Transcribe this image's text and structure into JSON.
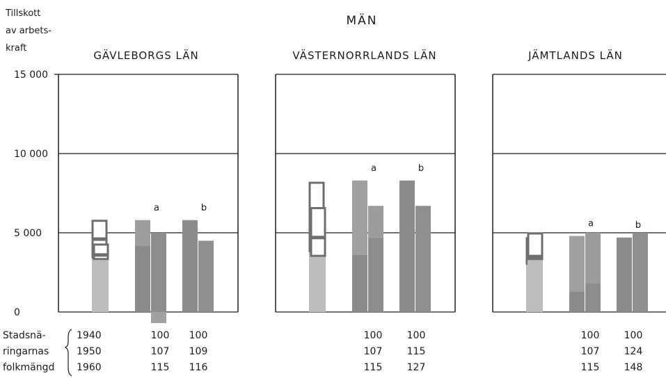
{
  "chart_data": {
    "type": "bar",
    "title": "MÄN",
    "ylabel": [
      "Tillskott",
      "av arbets-",
      "kraft"
    ],
    "ylim": [
      0,
      15000
    ],
    "yticks": [
      0,
      5000,
      10000,
      15000
    ],
    "ytick_labels": [
      "0",
      "5 000",
      "10 000",
      "15 000"
    ],
    "grid": true,
    "table": {
      "row_label": [
        "Stadsnä-",
        "ringarnas",
        "folkmängd"
      ],
      "years": [
        "1940",
        "1950",
        "1960"
      ]
    },
    "panels": [
      {
        "title": "GÄVLEBORGS LÄN",
        "index_a": [
          "100",
          "107",
          "115"
        ],
        "index_b": [
          "100",
          "109",
          "116"
        ],
        "groups": [
          {
            "label": "",
            "bars": [
              {
                "solid": [
                  0,
                  3400
                ],
                "boxes": [
                  [
                    3400,
                    4600
                  ],
                  [
                    4600,
                    5800
                  ]
                ]
              },
              {
                "solid": [
                  0,
                  3300
                ],
                "boxes": [
                  [
                    3300,
                    3600
                  ],
                  [
                    3600,
                    4300
                  ]
                ]
              }
            ]
          },
          {
            "label": "a",
            "bars": [
              {
                "segments": [
                  [
                    0,
                    4200,
                    "#8b8b8b"
                  ],
                  [
                    4200,
                    5800,
                    "#9d9d9d"
                  ]
                ]
              },
              {
                "segments": [
                  [
                    -700,
                    0,
                    "#a0a0a0"
                  ],
                  [
                    0,
                    5000,
                    "#8d8d8d"
                  ]
                ]
              }
            ]
          },
          {
            "label": "b",
            "bars": [
              {
                "segments": [
                  [
                    0,
                    5800,
                    "#8b8b8b"
                  ]
                ]
              },
              {
                "segments": [
                  [
                    0,
                    4500,
                    "#8f8f8f"
                  ]
                ]
              }
            ]
          }
        ]
      },
      {
        "title": "VÄSTERNORRLANDS LÄN",
        "index_a": [
          "100",
          "107",
          "115"
        ],
        "index_b": [
          "100",
          "115",
          "127"
        ],
        "groups": [
          {
            "label": "",
            "bars": [
              {
                "solid": [
                  0,
                  3800
                ],
                "boxes": [
                  [
                    3800,
                    5800
                  ],
                  [
                    5800,
                    8200
                  ]
                ]
              },
              {
                "solid": [
                  0,
                  3500
                ],
                "boxes": [
                  [
                    3500,
                    4700
                  ],
                  [
                    4700,
                    6600
                  ]
                ]
              }
            ]
          },
          {
            "label": "a",
            "bars": [
              {
                "segments": [
                  [
                    0,
                    3600,
                    "#8b8b8b"
                  ],
                  [
                    3600,
                    8300,
                    "#a0a0a0"
                  ]
                ]
              },
              {
                "segments": [
                  [
                    0,
                    4700,
                    "#8d8d8d"
                  ],
                  [
                    4700,
                    6700,
                    "#9c9c9c"
                  ]
                ]
              }
            ]
          },
          {
            "label": "b",
            "bars": [
              {
                "segments": [
                  [
                    0,
                    8300,
                    "#8b8b8b"
                  ]
                ]
              },
              {
                "segments": [
                  [
                    0,
                    6700,
                    "#8f8f8f"
                  ]
                ]
              }
            ]
          }
        ]
      },
      {
        "title": "JÄMTLANDS LÄN",
        "index_a": [
          "100",
          "107",
          "115"
        ],
        "index_b": [
          "100",
          "124",
          "148"
        ],
        "groups": [
          {
            "label": "",
            "bars": [
              {
                "solid": [
                  0,
                  3000
                ],
                "boxes": [
                  [
                    3000,
                    4000
                  ],
                  [
                    4000,
                    4700
                  ]
                ]
              },
              {
                "solid": [
                  0,
                  3300
                ],
                "boxes": [
                  [
                    3300,
                    3500
                  ],
                  [
                    3500,
                    5000
                  ]
                ]
              }
            ]
          },
          {
            "label": "a",
            "bars": [
              {
                "segments": [
                  [
                    0,
                    1300,
                    "#8b8b8b"
                  ],
                  [
                    1300,
                    4800,
                    "#a0a0a0"
                  ]
                ]
              },
              {
                "segments": [
                  [
                    0,
                    1800,
                    "#8d8d8d"
                  ],
                  [
                    1800,
                    5000,
                    "#9c9c9c"
                  ]
                ]
              }
            ]
          },
          {
            "label": "b",
            "bars": [
              {
                "segments": [
                  [
                    0,
                    4700,
                    "#8b8b8b"
                  ]
                ]
              },
              {
                "segments": [
                  [
                    0,
                    5000,
                    "#8f8f8f"
                  ]
                ]
              }
            ]
          }
        ]
      }
    ]
  },
  "colors": {
    "ink": "#1b1b1b",
    "light_bar": "#bdbdbd",
    "dark_bar": "#8b8b8b",
    "box_outline": "#6e6e6e"
  }
}
